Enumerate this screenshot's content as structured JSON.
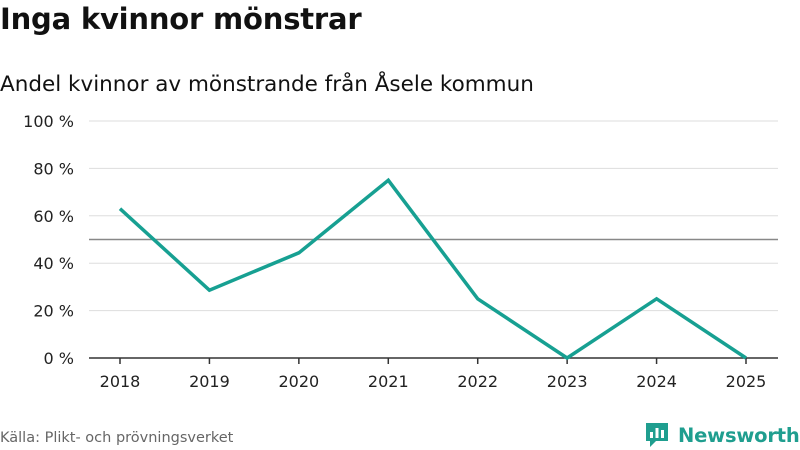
{
  "title": "Inga kvinnor mönstrar",
  "subtitle": "Andel kvinnor av mönstrande från Åsele kommun",
  "source": "Källa: Plikt- och prövningsverket",
  "brand": {
    "name": "Newsworthy",
    "icon": "newsworthy-logo-icon",
    "color": "#1f9e8f"
  },
  "colors": {
    "line": "#17a092",
    "grid": "#dddddd",
    "reference": "#888888",
    "axis": "#333333"
  },
  "chart_data": {
    "type": "line",
    "x": [
      "2018",
      "2019",
      "2020",
      "2021",
      "2022",
      "2023",
      "2024",
      "2025"
    ],
    "series": [
      {
        "name": "Andel kvinnor",
        "values": [
          63,
          28.6,
          44.4,
          75,
          25,
          0,
          25,
          0
        ]
      }
    ],
    "ylim": [
      0,
      100
    ],
    "yticks": [
      0,
      20,
      40,
      60,
      80,
      100
    ],
    "ytick_labels": [
      "0 %",
      "20 %",
      "40 %",
      "60 %",
      "80 %",
      "100 %"
    ],
    "reference_line": 50,
    "grid": true,
    "xlabel": "",
    "ylabel": ""
  }
}
